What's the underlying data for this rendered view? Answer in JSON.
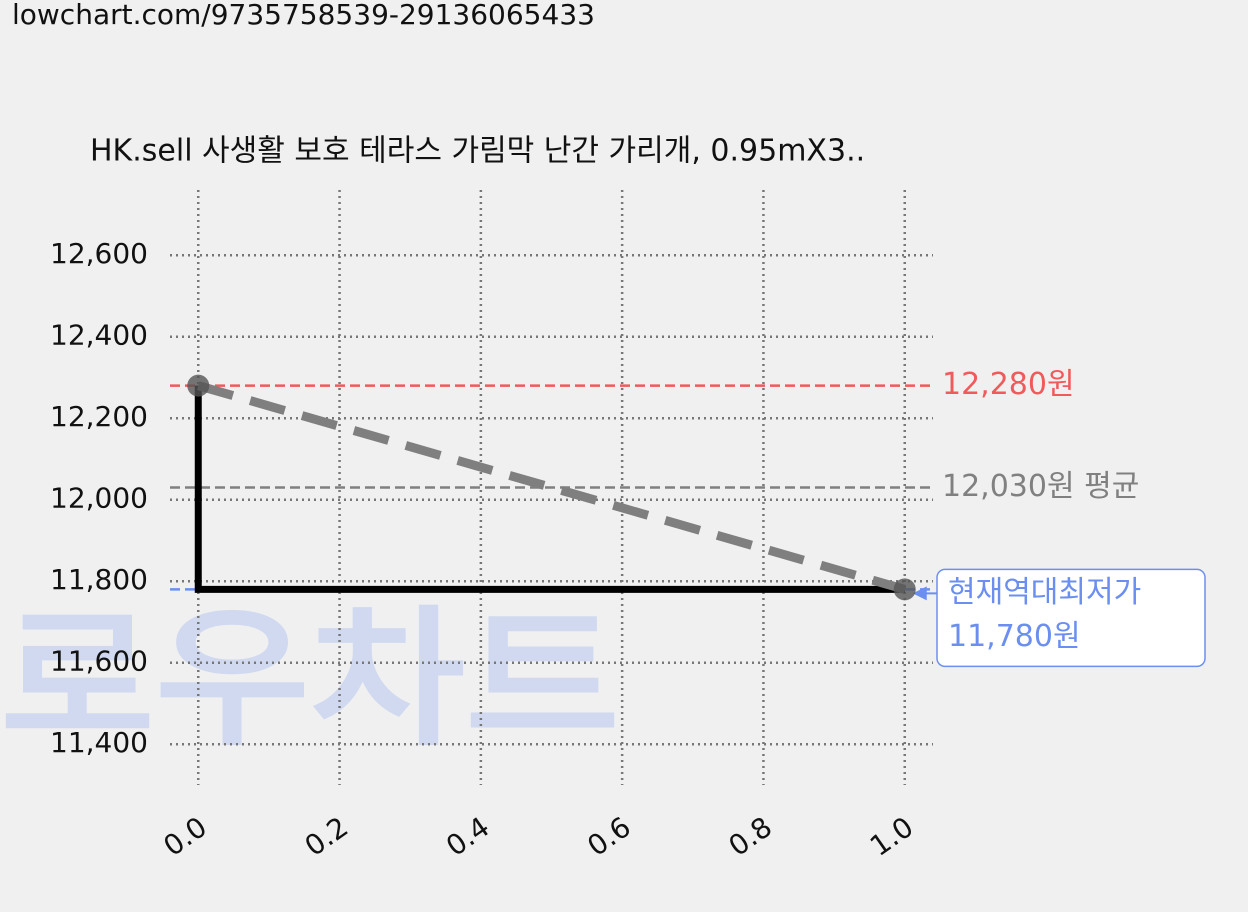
{
  "url": "lowchart.com/9735758539-29136065433",
  "watermark": "로우차트",
  "chart_data": {
    "type": "line",
    "title": "HK.sell 사생활 보호 테라스 가림막 난간 가리개, 0.95mX3..",
    "x": [
      0,
      1
    ],
    "series": [
      {
        "color": "#000000",
        "values": [
          12280,
          11780
        ],
        "step": "pre"
      },
      {
        "color": "#7f7f7f",
        "values": [
          12280,
          11780
        ],
        "dashed": true,
        "markers": true
      }
    ],
    "xlim": [
      -0.04,
      1.04
    ],
    "ylim": [
      11300,
      12760
    ],
    "xticks": [
      {
        "value": 0,
        "label": "0.0"
      },
      0.2,
      0.4,
      0.6,
      0.8,
      {
        "value": 1,
        "label": "1.0"
      }
    ],
    "yticks": [
      {
        "value": 11400,
        "label": "11,400"
      },
      {
        "value": 11600,
        "label": "11,600"
      },
      {
        "value": 11800,
        "label": "11,800"
      },
      {
        "value": 12000,
        "label": "12,000"
      },
      {
        "value": 12200,
        "label": "12,200"
      },
      {
        "value": 12400,
        "label": "12,400"
      },
      {
        "value": 12600,
        "label": "12,600"
      }
    ],
    "grid": true,
    "reference_lines": [
      {
        "value": 12280,
        "label": "12,280원",
        "color": "#f05a5a"
      },
      {
        "value": 12030,
        "label": "12,030원 평균",
        "color": "#808080"
      },
      {
        "value": 11780,
        "label": [
          "현재역대최저가",
          "11,780원"
        ],
        "color": "#6b8ff0"
      }
    ]
  }
}
